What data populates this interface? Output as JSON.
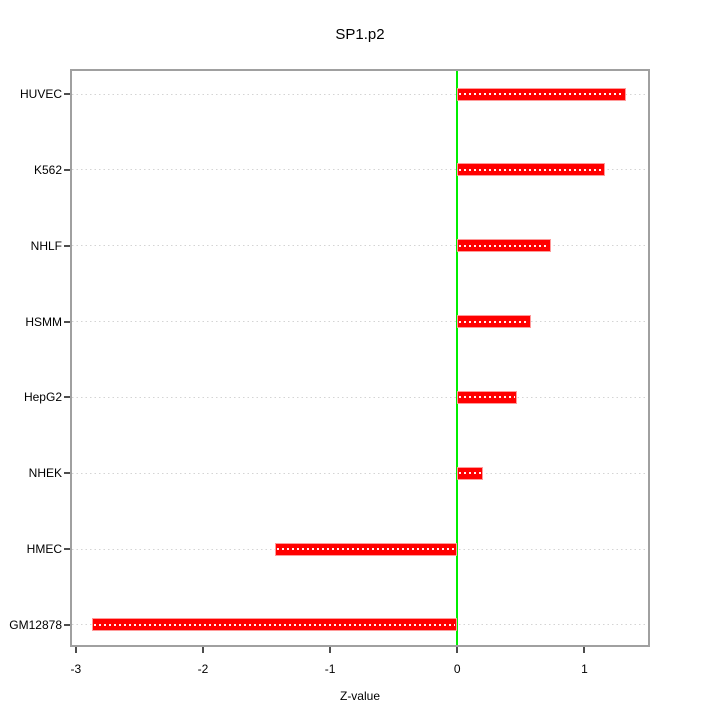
{
  "chart_data": {
    "type": "bar",
    "orientation": "horizontal",
    "title": "SP1.p2",
    "xlabel": "Z-value",
    "ylabel": "",
    "categories": [
      "HUVEC",
      "K562",
      "NHLF",
      "HSMM",
      "HepG2",
      "NHEK",
      "HMEC",
      "GM12878"
    ],
    "categories_order": "top to bottom",
    "values": [
      1.33,
      1.16,
      0.74,
      0.58,
      0.47,
      0.2,
      -1.43,
      -2.87
    ],
    "x_tick_values": [
      -3,
      -2,
      -1,
      0,
      1
    ],
    "x_tick_labels": [
      "-3",
      "-2",
      "-1",
      "0",
      "1"
    ],
    "xlim": [
      -3.03,
      1.5
    ],
    "reference_line_x": 0,
    "grid": "horizontal dotted line per category, full panel width",
    "legend": "none",
    "colors": {
      "bar_fill": "#ff0000",
      "bar_border": "#ff9a9a",
      "bar_center_dots": "#ffffff",
      "reference_line": "#00ee00",
      "grid_line": "#d4d4d4",
      "frame": "#a0a0a0",
      "ticks": "#4d4d4d",
      "text": "#000000",
      "background": "#ffffff"
    }
  }
}
